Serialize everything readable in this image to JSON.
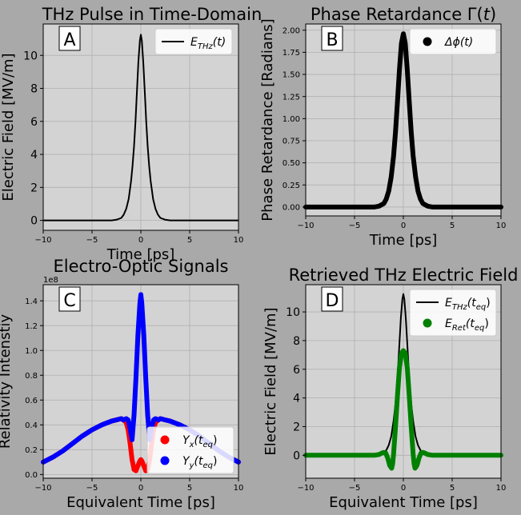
{
  "chart_data": [
    {
      "type": "line",
      "panel_label": "A",
      "title": "THz Pulse in Time-Domain",
      "xlabel": "Time [ps]",
      "ylabel": "Electric Field [MV/m]",
      "xlim": [
        -10,
        10
      ],
      "ylim": [
        -0.6,
        11.9
      ],
      "xticks": [
        -10,
        -5,
        0,
        5,
        10
      ],
      "xtick_labels": [
        "−10",
        "−5",
        "0",
        "5",
        "10"
      ],
      "yticks": [
        0,
        2,
        4,
        6,
        8,
        10
      ],
      "ytick_labels": [
        "0",
        "2",
        "4",
        "6",
        "8",
        "10"
      ],
      "grid": true,
      "legend_position": "top-right",
      "series": [
        {
          "name": "E_THz(t)",
          "legend_main": "E",
          "legend_sub": "THz",
          "legend_suffix": "(t)",
          "style": "line",
          "color": "#000000",
          "x": [
            -10,
            -4,
            -3,
            -2.5,
            -2,
            -1.75,
            -1.5,
            -1.25,
            -1,
            -0.85,
            -0.7,
            -0.55,
            -0.4,
            -0.25,
            -0.1,
            0,
            0.1,
            0.25,
            0.4,
            0.55,
            0.7,
            0.85,
            1,
            1.25,
            1.5,
            1.75,
            2,
            2.5,
            3,
            4,
            10
          ],
          "y": [
            0,
            0,
            0,
            0.04,
            0.15,
            0.35,
            0.7,
            1.3,
            2.4,
            3.3,
            4.5,
            6.0,
            7.8,
            9.6,
            10.9,
            11.25,
            10.9,
            9.6,
            7.8,
            6.0,
            4.5,
            3.3,
            2.4,
            1.3,
            0.7,
            0.35,
            0.15,
            0.04,
            0,
            0,
            0
          ]
        }
      ]
    },
    {
      "type": "scatter",
      "panel_label": "B",
      "title_main": "Phase Retardance Γ(",
      "title_italic": "t",
      "title_end": ")",
      "xlabel": "Time [ps]",
      "ylabel": "Phase Retardance [Radians]",
      "xlim": [
        -10,
        10
      ],
      "ylim": [
        -0.1,
        2.07
      ],
      "xticks": [
        -10,
        -5,
        0,
        5,
        10
      ],
      "xtick_labels": [
        "−10",
        "−5",
        "0",
        "5",
        "10"
      ],
      "yticks": [
        0,
        0.25,
        0.5,
        0.75,
        1.0,
        1.25,
        1.5,
        1.75,
        2.0
      ],
      "ytick_labels": [
        "0.00",
        "0.25",
        "0.50",
        "0.75",
        "1.00",
        "1.25",
        "1.50",
        "1.75",
        "2.00"
      ],
      "grid": true,
      "legend_position": "top-right",
      "series": [
        {
          "name": "Δϕ(t)",
          "legend_main": "Δϕ",
          "legend_suffix": "(t)",
          "style": "dots",
          "color": "#000000",
          "x": [
            -10,
            -4,
            -3,
            -2.5,
            -2,
            -1.75,
            -1.5,
            -1.25,
            -1,
            -0.8,
            -0.6,
            -0.4,
            -0.2,
            0,
            0.2,
            0.4,
            0.6,
            0.8,
            1,
            1.25,
            1.5,
            1.75,
            2,
            2.5,
            3,
            4,
            10
          ],
          "y": [
            0,
            0,
            0,
            0.01,
            0.04,
            0.09,
            0.18,
            0.34,
            0.58,
            0.85,
            1.2,
            1.55,
            1.85,
            1.96,
            1.85,
            1.55,
            1.2,
            0.85,
            0.58,
            0.34,
            0.18,
            0.09,
            0.04,
            0.01,
            0,
            0,
            0
          ]
        }
      ]
    },
    {
      "type": "scatter",
      "panel_label": "C",
      "title": "Electro-Optic Signals",
      "xlabel": "Equivalent Time [ps]",
      "ylabel": "Relativity Intenstiy",
      "offset_text": "1e8",
      "xlim": [
        -10,
        10
      ],
      "ylim": [
        -0.03,
        1.53
      ],
      "xticks": [
        -10,
        -5,
        0,
        5,
        10
      ],
      "xtick_labels": [
        "−10",
        "−5",
        "0",
        "5",
        "10"
      ],
      "yticks": [
        0,
        0.2,
        0.4,
        0.6,
        0.8,
        1.0,
        1.2,
        1.4
      ],
      "ytick_labels": [
        "0.0",
        "0.2",
        "0.4",
        "0.6",
        "0.8",
        "1.0",
        "1.2",
        "1.4"
      ],
      "grid": true,
      "legend_position": "lower-right",
      "series": [
        {
          "name": "Y_x(t_eq)",
          "legend_main": "Y",
          "legend_sub": "x",
          "legend_suffix": "(t",
          "legend_sub2": "eq",
          "legend_end": ")",
          "style": "dots",
          "color": "#ff0000",
          "x": [
            -10,
            -9,
            -8,
            -7,
            -6,
            -5,
            -4,
            -3,
            -2.5,
            -2,
            -1.8,
            -1.5,
            -1.3,
            -1.1,
            -0.9,
            -0.7,
            -0.5,
            -0.3,
            -0.1,
            0,
            0.1,
            0.3,
            0.5,
            0.7,
            0.9,
            1.1,
            1.3,
            1.5,
            1.8,
            2,
            2.5,
            3,
            4,
            5,
            6,
            7,
            8,
            9,
            10
          ],
          "y": [
            0.1,
            0.14,
            0.19,
            0.25,
            0.31,
            0.36,
            0.4,
            0.43,
            0.44,
            0.45,
            0.44,
            0.42,
            0.36,
            0.25,
            0.12,
            0.04,
            0.03,
            0.07,
            0.11,
            0.12,
            0.11,
            0.07,
            0.03,
            0.04,
            0.12,
            0.25,
            0.36,
            0.42,
            0.44,
            0.45,
            0.44,
            0.43,
            0.4,
            0.36,
            0.31,
            0.25,
            0.19,
            0.14,
            0.1
          ]
        },
        {
          "name": "Y_y(t_eq)",
          "legend_main": "Y",
          "legend_sub": "y",
          "legend_suffix": "(t",
          "legend_sub2": "eq",
          "legend_end": ")",
          "style": "dots",
          "color": "#0000ff",
          "x": [
            -10,
            -9,
            -8,
            -7,
            -6,
            -5,
            -4,
            -3,
            -2.5,
            -2,
            -1.8,
            -1.5,
            -1.3,
            -1.1,
            -0.9,
            -0.7,
            -0.5,
            -0.3,
            -0.1,
            0,
            0.1,
            0.3,
            0.5,
            0.7,
            0.9,
            1.1,
            1.3,
            1.5,
            1.8,
            2,
            2.5,
            3,
            4,
            5,
            6,
            7,
            8,
            9,
            10
          ],
          "y": [
            0.1,
            0.14,
            0.19,
            0.25,
            0.31,
            0.36,
            0.4,
            0.43,
            0.44,
            0.45,
            0.44,
            0.45,
            0.44,
            0.37,
            0.28,
            0.48,
            0.78,
            1.12,
            1.38,
            1.45,
            1.38,
            1.12,
            0.78,
            0.48,
            0.28,
            0.37,
            0.44,
            0.45,
            0.44,
            0.45,
            0.44,
            0.43,
            0.4,
            0.36,
            0.31,
            0.25,
            0.19,
            0.14,
            0.1
          ]
        }
      ]
    },
    {
      "type": "line",
      "panel_label": "D",
      "title": "Retrieved THz Electric Field",
      "xlabel": "Equivalent Time [ps]",
      "ylabel": "Electric Field [MV/m]",
      "xlim": [
        -10,
        10
      ],
      "ylim": [
        -1.6,
        11.9
      ],
      "xticks": [
        -10,
        -5,
        0,
        5,
        10
      ],
      "xtick_labels": [
        "−10",
        "−5",
        "0",
        "5",
        "10"
      ],
      "yticks": [
        0,
        2,
        4,
        6,
        8,
        10
      ],
      "ytick_labels": [
        "0",
        "2",
        "4",
        "6",
        "8",
        "10"
      ],
      "grid": true,
      "legend_position": "top-right",
      "series": [
        {
          "name": "E_THz(t_eq)",
          "legend_main": "E",
          "legend_sub": "THz",
          "legend_suffix": "(t",
          "legend_sub2": "eq",
          "legend_end": ")",
          "style": "line",
          "color": "#000000",
          "x": [
            -10,
            -4,
            -3,
            -2.5,
            -2,
            -1.75,
            -1.5,
            -1.25,
            -1,
            -0.85,
            -0.7,
            -0.55,
            -0.4,
            -0.25,
            -0.1,
            0,
            0.1,
            0.25,
            0.4,
            0.55,
            0.7,
            0.85,
            1,
            1.25,
            1.5,
            1.75,
            2,
            2.5,
            3,
            4,
            10
          ],
          "y": [
            0,
            0,
            0,
            0.04,
            0.15,
            0.35,
            0.7,
            1.3,
            2.4,
            3.3,
            4.5,
            6.0,
            7.8,
            9.6,
            10.9,
            11.25,
            10.9,
            9.6,
            7.8,
            6.0,
            4.5,
            3.3,
            2.4,
            1.3,
            0.7,
            0.35,
            0.15,
            0.04,
            0,
            0,
            0
          ]
        },
        {
          "name": "E_Ret(t_eq)",
          "legend_main": "E",
          "legend_sub": "Ret",
          "legend_suffix": "(t",
          "legend_sub2": "eq",
          "legend_end": ")",
          "style": "dots",
          "color": "#008000",
          "x": [
            -10,
            -4,
            -3,
            -2.5,
            -2.2,
            -2,
            -1.8,
            -1.6,
            -1.4,
            -1.2,
            -1.1,
            -1,
            -0.8,
            -0.6,
            -0.4,
            -0.2,
            0,
            0.2,
            0.4,
            0.6,
            0.8,
            1,
            1.1,
            1.2,
            1.4,
            1.6,
            1.8,
            2,
            2.2,
            2.5,
            3,
            4,
            10
          ],
          "y": [
            0,
            0,
            0,
            0.05,
            0.15,
            0.2,
            0.15,
            -0.2,
            -0.7,
            -0.9,
            -0.6,
            0.1,
            2.0,
            4.2,
            6.1,
            7.1,
            7.3,
            7.1,
            6.1,
            4.2,
            2.0,
            0.1,
            -0.6,
            -0.9,
            -0.7,
            -0.2,
            0.15,
            0.2,
            0.15,
            0.05,
            0,
            0,
            0
          ]
        }
      ]
    }
  ]
}
